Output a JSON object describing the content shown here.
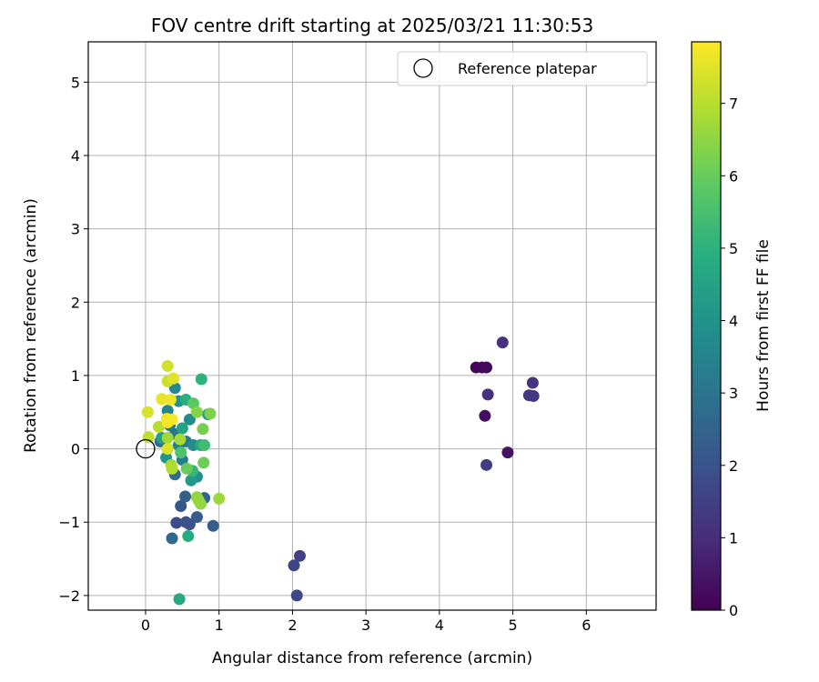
{
  "chart_data": {
    "type": "scatter",
    "title": "FOV centre drift starting at 2025/03/21 11:30:53",
    "xlabel": "Angular distance from reference (arcmin)",
    "ylabel": "Rotation from reference (arcmin)",
    "xlim": [
      -0.78,
      6.95
    ],
    "ylim": [
      -2.2,
      5.55
    ],
    "xticks": [
      0,
      1,
      2,
      3,
      4,
      5,
      6
    ],
    "yticks": [
      -2,
      -1,
      0,
      1,
      2,
      3,
      4,
      5
    ],
    "grid": true,
    "legend": {
      "placement": "upper right",
      "entries": [
        "Reference platepar"
      ]
    },
    "reference_point": {
      "label": "Reference platepar",
      "x": 0,
      "y": 0
    },
    "colorbar": {
      "label": "Hours from first FF file",
      "range": [
        0,
        7.85
      ],
      "ticks": [
        0,
        1,
        2,
        3,
        4,
        5,
        6,
        7
      ],
      "colormap": "viridis"
    },
    "series": [
      {
        "points": [
          {
            "x": 4.5,
            "y": 1.11,
            "c": 0.1
          },
          {
            "x": 4.58,
            "y": 1.11,
            "c": 0.15
          },
          {
            "x": 4.64,
            "y": 1.11,
            "c": 0.2
          },
          {
            "x": 4.62,
            "y": 0.45,
            "c": 0.3
          },
          {
            "x": 4.93,
            "y": -0.05,
            "c": 0.4
          },
          {
            "x": 4.66,
            "y": 0.74,
            "c": 1.1
          },
          {
            "x": 4.86,
            "y": 1.45,
            "c": 1.15
          },
          {
            "x": 5.27,
            "y": 0.9,
            "c": 1.2
          },
          {
            "x": 5.22,
            "y": 0.73,
            "c": 1.25
          },
          {
            "x": 5.28,
            "y": 0.72,
            "c": 1.3
          },
          {
            "x": 4.64,
            "y": -0.22,
            "c": 1.4
          },
          {
            "x": 2.1,
            "y": -1.46,
            "c": 1.5
          },
          {
            "x": 2.02,
            "y": -1.59,
            "c": 1.6
          },
          {
            "x": 2.06,
            "y": -2.0,
            "c": 1.7
          },
          {
            "x": 0.42,
            "y": -1.01,
            "c": 1.8
          },
          {
            "x": 0.55,
            "y": -1.0,
            "c": 1.9
          },
          {
            "x": 0.6,
            "y": -1.03,
            "c": 2.0
          },
          {
            "x": 0.48,
            "y": -0.78,
            "c": 2.1
          },
          {
            "x": 0.7,
            "y": -0.93,
            "c": 2.2
          },
          {
            "x": 0.92,
            "y": -1.05,
            "c": 2.3
          },
          {
            "x": 0.54,
            "y": -0.65,
            "c": 2.4
          },
          {
            "x": 0.8,
            "y": -0.67,
            "c": 2.5
          },
          {
            "x": 0.36,
            "y": -1.22,
            "c": 2.6
          },
          {
            "x": 0.4,
            "y": -0.35,
            "c": 2.7
          },
          {
            "x": 0.2,
            "y": 0.1,
            "c": 2.8
          },
          {
            "x": 0.3,
            "y": 0.0,
            "c": 2.9
          },
          {
            "x": 0.4,
            "y": 0.2,
            "c": 3.0
          },
          {
            "x": 0.55,
            "y": 0.1,
            "c": 3.1
          },
          {
            "x": 0.33,
            "y": 0.32,
            "c": 3.2
          },
          {
            "x": 0.5,
            "y": -0.15,
            "c": 3.3
          },
          {
            "x": 0.45,
            "y": 0.05,
            "c": 3.4
          },
          {
            "x": 0.3,
            "y": 0.52,
            "c": 3.5
          },
          {
            "x": 0.4,
            "y": 0.83,
            "c": 3.6
          },
          {
            "x": 0.6,
            "y": 0.4,
            "c": 3.7
          },
          {
            "x": 0.65,
            "y": 0.05,
            "c": 3.8
          },
          {
            "x": 0.7,
            "y": -0.38,
            "c": 3.9
          },
          {
            "x": 0.45,
            "y": 0.65,
            "c": 4.0
          },
          {
            "x": 0.28,
            "y": -0.12,
            "c": 4.1
          },
          {
            "x": 0.62,
            "y": -0.43,
            "c": 4.2
          },
          {
            "x": 0.85,
            "y": 0.47,
            "c": 4.3
          },
          {
            "x": 0.22,
            "y": 0.15,
            "c": 4.4
          },
          {
            "x": 0.5,
            "y": 0.28,
            "c": 4.5
          },
          {
            "x": 0.75,
            "y": 0.05,
            "c": 4.6
          },
          {
            "x": 0.46,
            "y": -2.05,
            "c": 4.7
          },
          {
            "x": 0.58,
            "y": -1.19,
            "c": 4.8
          },
          {
            "x": 0.55,
            "y": 0.67,
            "c": 4.9
          },
          {
            "x": 0.76,
            "y": 0.95,
            "c": 5.0
          },
          {
            "x": 0.64,
            "y": -0.3,
            "c": 5.2
          },
          {
            "x": 0.8,
            "y": 0.05,
            "c": 5.4
          },
          {
            "x": 0.48,
            "y": -0.05,
            "c": 5.6
          },
          {
            "x": 0.65,
            "y": 0.62,
            "c": 5.8
          },
          {
            "x": 0.56,
            "y": -0.27,
            "c": 6.0
          },
          {
            "x": 0.79,
            "y": -0.19,
            "c": 6.1
          },
          {
            "x": 0.78,
            "y": 0.27,
            "c": 6.2
          },
          {
            "x": 0.88,
            "y": 0.48,
            "c": 6.3
          },
          {
            "x": 0.7,
            "y": 0.5,
            "c": 6.4
          },
          {
            "x": 0.7,
            "y": -0.66,
            "c": 6.5
          },
          {
            "x": 0.75,
            "y": -0.75,
            "c": 6.55
          },
          {
            "x": 0.72,
            "y": -0.7,
            "c": 6.6
          },
          {
            "x": 1.0,
            "y": -0.68,
            "c": 6.65
          },
          {
            "x": 0.3,
            "y": 0.15,
            "c": 6.7
          },
          {
            "x": 0.47,
            "y": 0.13,
            "c": 6.75
          },
          {
            "x": 0.35,
            "y": -0.22,
            "c": 6.8
          },
          {
            "x": 0.36,
            "y": -0.27,
            "c": 6.9
          },
          {
            "x": 0.18,
            "y": 0.3,
            "c": 7.0
          },
          {
            "x": 0.04,
            "y": 0.16,
            "c": 7.1
          },
          {
            "x": 0.3,
            "y": 0.92,
            "c": 7.2
          },
          {
            "x": 0.3,
            "y": 1.13,
            "c": 7.3
          },
          {
            "x": 0.03,
            "y": 0.5,
            "c": 7.4
          },
          {
            "x": 0.3,
            "y": 0.0,
            "c": 7.45
          },
          {
            "x": 0.38,
            "y": 0.96,
            "c": 7.5
          },
          {
            "x": 0.22,
            "y": 0.68,
            "c": 7.6
          },
          {
            "x": 0.34,
            "y": 0.67,
            "c": 7.65
          },
          {
            "x": 0.29,
            "y": 0.41,
            "c": 7.7
          },
          {
            "x": 0.36,
            "y": 0.4,
            "c": 7.75
          },
          {
            "x": 0.3,
            "y": 0.36,
            "c": 7.8
          }
        ]
      }
    ]
  }
}
